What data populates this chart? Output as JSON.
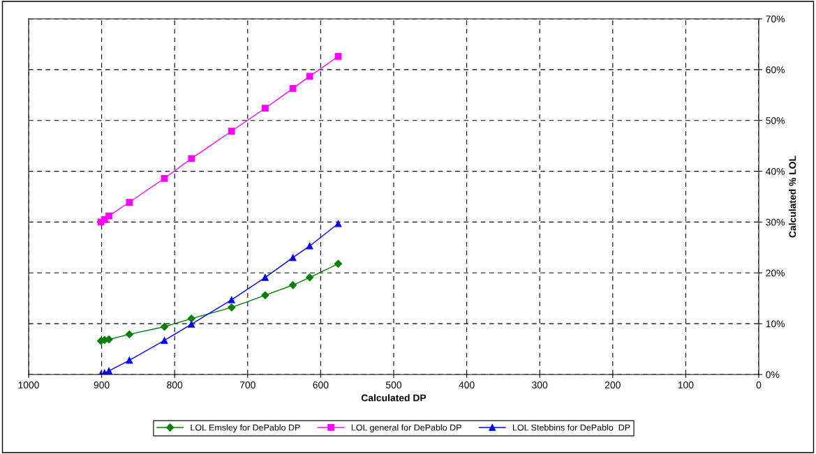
{
  "chart_data": {
    "type": "line",
    "xlabel": "Calculated DP",
    "ylabel": "Calculated % LOL",
    "x": [
      901,
      896,
      890,
      862,
      814,
      777,
      722,
      676,
      638,
      615,
      576
    ],
    "xlim": [
      1000,
      0
    ],
    "xticks": [
      1000,
      900,
      800,
      700,
      600,
      500,
      400,
      300,
      200,
      100,
      0
    ],
    "ylim": [
      0,
      70
    ],
    "yticks": [
      {
        "value": 0,
        "label": "0%"
      },
      {
        "value": 10,
        "label": "10%"
      },
      {
        "value": 20,
        "label": "20%"
      },
      {
        "value": 30,
        "label": "30%"
      },
      {
        "value": 40,
        "label": "40%"
      },
      {
        "value": 50,
        "label": "50%"
      },
      {
        "value": 60,
        "label": "60%"
      },
      {
        "value": 70,
        "label": "70%"
      }
    ],
    "grid": true,
    "legend": "bottom",
    "line_style": "solid",
    "series": [
      {
        "name": "LOL Emsley for DePablo DP",
        "color": "#008000",
        "marker": "diamond",
        "values": [
          6.6,
          6.8,
          6.9,
          7.9,
          9.4,
          11.0,
          13.2,
          15.6,
          17.6,
          19.1,
          21.8
        ]
      },
      {
        "name": "LOL general for DePablo DP",
        "color": "#ff00ff",
        "marker": "square",
        "values": [
          30.0,
          30.5,
          31.2,
          33.9,
          38.6,
          42.5,
          47.9,
          52.4,
          56.3,
          58.7,
          62.6
        ]
      },
      {
        "name": "LOL Stebbins for DePablo  DP",
        "color": "#0000ff",
        "marker": "triangle",
        "values": [
          0.0,
          0.3,
          0.7,
          2.8,
          6.7,
          9.9,
          14.7,
          19.1,
          23.0,
          25.3,
          29.7
        ]
      }
    ]
  }
}
